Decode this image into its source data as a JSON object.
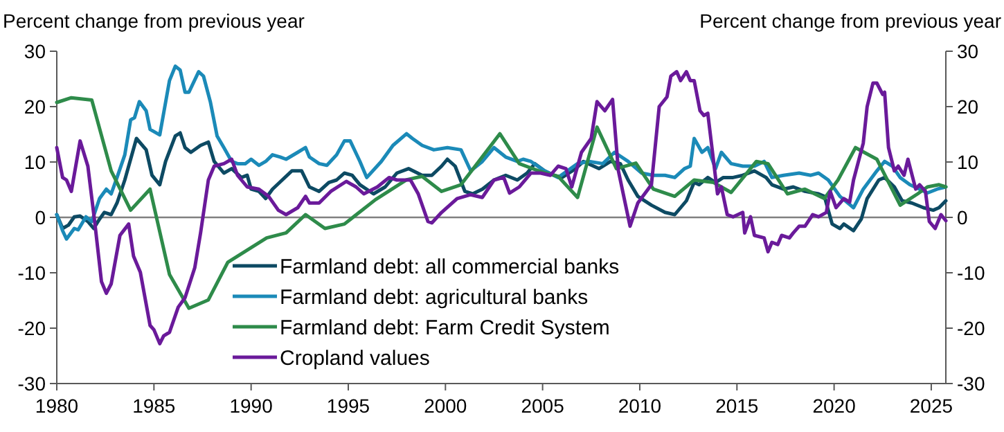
{
  "chart_data": {
    "type": "line",
    "ylabel": "Percent change from previous year",
    "y2label": "Percent change from previous year",
    "xlim": [
      1980,
      2025.75
    ],
    "xticks": [
      1980,
      1985,
      1990,
      1995,
      2000,
      2005,
      2010,
      2015,
      2020,
      2025
    ],
    "ylim": [
      -30,
      30
    ],
    "yticks": [
      -30,
      -20,
      -10,
      0,
      10,
      20,
      30
    ],
    "y2lim": [
      -30,
      30
    ],
    "y2ticks": [
      -30,
      -20,
      -10,
      0,
      10,
      20,
      30
    ],
    "grid": false,
    "legend": "bottom",
    "marker": "none",
    "line_style": "solid",
    "ref_lines": [
      {
        "axis": "y",
        "value": 0,
        "color": "#808080"
      }
    ],
    "series": [
      {
        "name": "Farmland debt: all commercial banks",
        "color": "#0d4a63",
        "x": [
          1980,
          1980.3,
          1980.6,
          1980.9,
          1981.2,
          1981.6,
          1981.9,
          1982.2,
          1982.45,
          1982.8,
          1983.1,
          1983.5,
          1983.9,
          1984.1,
          1984.6,
          1984.9,
          1985.3,
          1985.6,
          1986.1,
          1986.35,
          1986.6,
          1986.9,
          1987.4,
          1987.8,
          1988.1,
          1988.6,
          1989,
          1989.5,
          1989.8,
          1990,
          1990.4,
          1990.75,
          1991.1,
          1991.6,
          1992.1,
          1992.6,
          1993,
          1993.5,
          1994,
          1994.4,
          1994.8,
          1995.2,
          1995.6,
          1996.3,
          1996.9,
          1997.5,
          1998.1,
          1998.8,
          1999.3,
          1999.8,
          2000.1,
          2000.5,
          2001,
          2001.4,
          2001.9,
          2002.5,
          2003.1,
          2003.7,
          2004.2,
          2004.6,
          2005.1,
          2005.6,
          2006,
          2006.7,
          2007.1,
          2007.9,
          2008.5,
          2009,
          2009.4,
          2009.9,
          2010.6,
          2011.3,
          2011.8,
          2012.4,
          2012.8,
          2013.05,
          2013.5,
          2013.9,
          2014.3,
          2014.8,
          2015.3,
          2015.9,
          2016.5,
          2016.8,
          2017.4,
          2017.9,
          2018.5,
          2019.2,
          2019.5,
          2019.9,
          2020.3,
          2020.5,
          2021,
          2021.4,
          2021.7,
          2022.3,
          2022.6,
          2023.1,
          2023.5,
          2024,
          2024.6,
          2025.1,
          2025.4,
          2025.75
        ],
        "values": [
          0.5,
          -2,
          -1.4,
          0.1,
          0.25,
          -0.75,
          -2,
          -0.3,
          0.9,
          0.5,
          2.6,
          6.75,
          11.75,
          14.25,
          12.2,
          7.6,
          5.9,
          10.1,
          14.7,
          15.25,
          12.6,
          11.75,
          13,
          13.6,
          10.1,
          8,
          8.8,
          7.2,
          7.6,
          5.1,
          4.7,
          3.4,
          5.1,
          6.75,
          8.4,
          8.4,
          5.5,
          4.7,
          6.3,
          6.75,
          8,
          7.6,
          5.9,
          4.25,
          5.5,
          8,
          8.8,
          7.6,
          7.6,
          9.25,
          10.5,
          9.25,
          4.7,
          4.25,
          5.1,
          6.75,
          7.6,
          6.75,
          8,
          9.7,
          8.4,
          7.6,
          7.2,
          8.8,
          10.1,
          8.8,
          10.1,
          9.7,
          6.75,
          3.8,
          2.2,
          0.9,
          0.5,
          3,
          6.3,
          5.9,
          7.2,
          6.3,
          7.2,
          7.2,
          7.6,
          8.4,
          7.2,
          5.9,
          5.1,
          5.5,
          4.7,
          4.25,
          3.8,
          -1.2,
          -2,
          -1.2,
          -2.4,
          -0.3,
          3.4,
          6.75,
          7.2,
          5.5,
          3,
          2.6,
          1.75,
          1.3,
          1.75,
          3
        ]
      },
      {
        "name": "Farmland debt: agricultural banks",
        "color": "#1b8ab8",
        "x": [
          1980,
          1980.3,
          1980.5,
          1980.9,
          1981.1,
          1981.5,
          1981.8,
          1982.2,
          1982.55,
          1982.8,
          1983.1,
          1983.5,
          1983.8,
          1984,
          1984.25,
          1984.6,
          1984.8,
          1985.3,
          1985.8,
          1986.1,
          1986.35,
          1986.6,
          1986.8,
          1987.3,
          1987.55,
          1987.9,
          1988.25,
          1988.6,
          1989,
          1989.3,
          1989.7,
          1990,
          1990.4,
          1990.75,
          1991.1,
          1991.5,
          1991.8,
          1992.4,
          1992.8,
          1993,
          1993.5,
          1993.9,
          1994.4,
          1994.8,
          1995.1,
          1995.6,
          1995.95,
          1996.7,
          1997.3,
          1998,
          1998.3,
          1998.8,
          1999.4,
          2000.1,
          2000.8,
          2001.3,
          2001.9,
          2002.5,
          2003.1,
          2003.7,
          2004,
          2004.4,
          2005.1,
          2005.8,
          2006.8,
          2007.4,
          2008.1,
          2008.7,
          2009.4,
          2010.1,
          2010.7,
          2011.3,
          2011.8,
          2012.3,
          2012.6,
          2012.8,
          2013.2,
          2013.5,
          2013.9,
          2014.2,
          2014.7,
          2015.3,
          2015.9,
          2016.4,
          2016.8,
          2017.4,
          2018.2,
          2018.8,
          2019.2,
          2019.7,
          2020.3,
          2021,
          2021.5,
          2022.2,
          2022.6,
          2023,
          2023.4,
          2023.9,
          2024.4,
          2024.8,
          2025.3,
          2025.75
        ],
        "values": [
          0.5,
          -2.4,
          -3.9,
          -2,
          -2.25,
          0.1,
          -0.75,
          3.4,
          5.1,
          4.25,
          7.2,
          11.3,
          17.6,
          18,
          20.9,
          19.25,
          15.9,
          14.9,
          24.7,
          27.3,
          26.6,
          22.6,
          22.6,
          26.3,
          25.5,
          20.9,
          14.7,
          12.6,
          10.1,
          9.7,
          9.7,
          10.5,
          9.4,
          10.1,
          11.3,
          10.9,
          10.5,
          11.75,
          12.6,
          10.9,
          9.7,
          9.4,
          11.3,
          13.8,
          13.8,
          10.1,
          7.2,
          10.1,
          13,
          15.1,
          14.25,
          13,
          12.2,
          12.6,
          12.2,
          8.4,
          10.1,
          12.6,
          10.9,
          10.1,
          10.5,
          10.1,
          8.4,
          7.2,
          9.7,
          10.1,
          9.7,
          11.75,
          10.1,
          8,
          7.6,
          7.6,
          7.2,
          8.8,
          9.25,
          14.25,
          11.75,
          12.6,
          8.8,
          11.75,
          9.7,
          9.25,
          9.25,
          10.1,
          7.2,
          7.6,
          8,
          7.6,
          8,
          6.75,
          3.8,
          1.75,
          5.1,
          8.4,
          10.1,
          9.25,
          7.2,
          5.9,
          5.1,
          4.4,
          5.1,
          5.5
        ]
      },
      {
        "name": "Farmland debt: Farm Credit System",
        "color": "#2e8b4a",
        "x": [
          1980,
          1980.75,
          1981.8,
          1982.8,
          1983.8,
          1984.8,
          1985.8,
          1986.8,
          1987.8,
          1988.8,
          1990.8,
          1991.8,
          1992.8,
          1993.8,
          1994.8,
          1996.4,
          1998,
          1998.8,
          1999.8,
          2000.8,
          2002.8,
          2003.8,
          2004.8,
          2005.8,
          2006.8,
          2007.8,
          2008.8,
          2009.8,
          2010.7,
          2011.8,
          2012.8,
          2013.8,
          2014.7,
          2016,
          2016.6,
          2017.6,
          2018.5,
          2019.5,
          2020.2,
          2021.1,
          2022.2,
          2023.4,
          2024.3,
          2024.8,
          2025.4,
          2025.75
        ],
        "values": [
          20.75,
          21.6,
          21.2,
          8.4,
          1.3,
          5.1,
          -10.3,
          -16.4,
          -14.9,
          -8.1,
          -3.7,
          -2.8,
          0.5,
          -2,
          -1.2,
          3.2,
          6.8,
          7.4,
          4.7,
          5.9,
          15.1,
          9.7,
          8.4,
          7.4,
          3.6,
          16.3,
          8.8,
          9.8,
          5.1,
          3.8,
          6.75,
          6.3,
          4.5,
          10.1,
          9.7,
          4.25,
          5.1,
          3.4,
          6.75,
          12.6,
          10.5,
          2.2,
          4.25,
          5.5,
          5.9,
          5.5
        ]
      },
      {
        "name": "Cropland values",
        "color": "#6a1a9a",
        "x": [
          1980,
          1980.3,
          1980.5,
          1980.75,
          1981.2,
          1981.6,
          1981.95,
          1982.3,
          1982.55,
          1982.8,
          1983.25,
          1983.7,
          1983.95,
          1984.3,
          1984.8,
          1985,
          1985.3,
          1985.5,
          1985.8,
          1986.25,
          1986.6,
          1987.1,
          1987.4,
          1987.8,
          1988.1,
          1988.6,
          1989,
          1989.3,
          1989.8,
          1990.4,
          1990.9,
          1991.4,
          1991.8,
          1992.4,
          1992.8,
          1993,
          1993.5,
          1994.1,
          1994.9,
          1995.4,
          1995.8,
          1996.5,
          1997.1,
          1997.5,
          1998.2,
          1998.6,
          1999.1,
          1999.3,
          1999.8,
          2000.6,
          2001.3,
          2001.9,
          2002.5,
          2003,
          2003.3,
          2003.8,
          2004.4,
          2004.9,
          2005.4,
          2005.8,
          2006.2,
          2006.5,
          2007,
          2007.5,
          2007.8,
          2008.2,
          2008.6,
          2008.9,
          2009.5,
          2009.9,
          2010.6,
          2011,
          2011.4,
          2011.6,
          2011.9,
          2012.1,
          2012.4,
          2012.6,
          2012.8,
          2013.1,
          2013.3,
          2013.5,
          2013.8,
          2014,
          2014.2,
          2014.5,
          2014.8,
          2015.3,
          2015.4,
          2015.7,
          2015.9,
          2016.4,
          2016.6,
          2016.8,
          2017.1,
          2017.3,
          2017.7,
          2017.9,
          2018.2,
          2018.5,
          2018.9,
          2019.2,
          2019.6,
          2019.8,
          2020.1,
          2020.5,
          2020.8,
          2021,
          2021.5,
          2021.7,
          2022,
          2022.2,
          2022.5,
          2022.6,
          2022.8,
          2023.1,
          2023.3,
          2023.6,
          2023.8,
          2024.2,
          2024.4,
          2024.7,
          2024.9,
          2025.2,
          2025.5,
          2025.75
        ],
        "values": [
          12.6,
          7.2,
          6.75,
          4.7,
          13.8,
          9.25,
          -0.75,
          -11.6,
          -13.7,
          -12,
          -3.25,
          -1.2,
          -7,
          -9.9,
          -19.5,
          -20.3,
          -22.8,
          -21.4,
          -20.75,
          -16.2,
          -14.5,
          -9.1,
          -2.8,
          6.75,
          9.25,
          9.7,
          10.5,
          7.6,
          5.5,
          5.1,
          3.8,
          1.3,
          0.5,
          1.75,
          3.8,
          2.6,
          2.6,
          4.7,
          6.5,
          5.5,
          4.25,
          5.5,
          7.2,
          6.75,
          6.75,
          4.25,
          -0.75,
          -1,
          0.9,
          3.4,
          4.1,
          3.6,
          6.75,
          7.2,
          4.4,
          5.5,
          8,
          8,
          7.6,
          9.25,
          8.8,
          5.5,
          11.75,
          14.25,
          20.9,
          19.25,
          21.3,
          8.4,
          -1.6,
          2.6,
          5.9,
          20,
          21.75,
          25.5,
          26.3,
          24.7,
          26.3,
          24.7,
          24.7,
          19.25,
          18.4,
          18.8,
          10.1,
          4.25,
          5.5,
          0.5,
          0.1,
          0.9,
          -2.8,
          0.1,
          -3.25,
          -3.7,
          -6.2,
          -4.5,
          -4.9,
          -3.25,
          -3.7,
          -2.8,
          -1.6,
          -1.6,
          0.5,
          0.1,
          0.9,
          4.7,
          1.75,
          3.4,
          2.75,
          6.75,
          13.4,
          20,
          24.25,
          24.25,
          22.2,
          22.6,
          12.6,
          8.4,
          9.25,
          7.6,
          10.5,
          5.1,
          5.9,
          4.7,
          -0.75,
          -2,
          0.5,
          -0.6
        ]
      }
    ]
  }
}
